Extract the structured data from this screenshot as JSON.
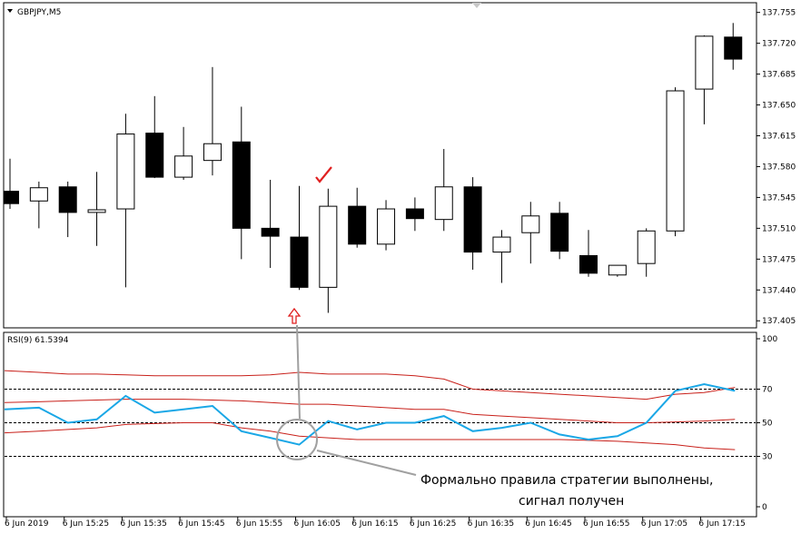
{
  "symbol_label": "GBPJPY,M5",
  "price_axis": {
    "ticks": [
      "137.755",
      "137.720",
      "137.685",
      "137.650",
      "137.615",
      "137.580",
      "137.545",
      "137.510",
      "137.475",
      "137.440",
      "137.405"
    ],
    "ylim": [
      137.397,
      137.766
    ]
  },
  "rsi_panel": {
    "label": "RSI(9) 61.5394",
    "ticks": [
      "100",
      "70",
      "50",
      "30",
      "0"
    ],
    "levels": [
      70,
      50,
      30
    ]
  },
  "time_axis": {
    "labels": [
      "6 Jun 2019",
      "6 Jun 15:25",
      "6 Jun 15:35",
      "6 Jun 15:45",
      "6 Jun 15:55",
      "6 Jun 16:05",
      "6 Jun 16:15",
      "6 Jun 16:25",
      "6 Jun 16:35",
      "6 Jun 16:45",
      "6 Jun 16:55",
      "6 Jun 17:05",
      "6 Jun 17:15"
    ]
  },
  "annotation": {
    "line1": "Формально правила стратегии выполнены,",
    "line2": "сигнал получен"
  },
  "colors": {
    "rsi_line": "#1aa7e6",
    "bands": "#c8201a",
    "signal_marks": "#e02020",
    "bear_candle": "#000000",
    "bull_candle": "#ffffff"
  },
  "chart_data": {
    "type": "candlestick",
    "symbol": "GBPJPY",
    "timeframe": "M5",
    "candles": [
      {
        "o": 137.552,
        "h": 137.589,
        "l": 137.532,
        "c": 137.538
      },
      {
        "o": 137.541,
        "h": 137.563,
        "l": 137.51,
        "c": 137.556
      },
      {
        "o": 137.557,
        "h": 137.563,
        "l": 137.5,
        "c": 137.528
      },
      {
        "o": 137.528,
        "h": 137.574,
        "l": 137.49,
        "c": 137.531
      },
      {
        "o": 137.532,
        "h": 137.64,
        "l": 137.443,
        "c": 137.617
      },
      {
        "o": 137.618,
        "h": 137.66,
        "l": 137.567,
        "c": 137.568
      },
      {
        "o": 137.568,
        "h": 137.625,
        "l": 137.565,
        "c": 137.592
      },
      {
        "o": 137.587,
        "h": 137.693,
        "l": 137.57,
        "c": 137.606
      },
      {
        "o": 137.608,
        "h": 137.648,
        "l": 137.475,
        "c": 137.51
      },
      {
        "o": 137.51,
        "h": 137.565,
        "l": 137.465,
        "c": 137.501
      },
      {
        "o": 137.5,
        "h": 137.558,
        "l": 137.44,
        "c": 137.443
      },
      {
        "o": 137.443,
        "h": 137.555,
        "l": 137.414,
        "c": 137.535
      },
      {
        "o": 137.535,
        "h": 137.556,
        "l": 137.488,
        "c": 137.492
      },
      {
        "o": 137.492,
        "h": 137.542,
        "l": 137.485,
        "c": 137.532
      },
      {
        "o": 137.532,
        "h": 137.545,
        "l": 137.507,
        "c": 137.521
      },
      {
        "o": 137.52,
        "h": 137.6,
        "l": 137.507,
        "c": 137.557
      },
      {
        "o": 137.557,
        "h": 137.568,
        "l": 137.463,
        "c": 137.483
      },
      {
        "o": 137.483,
        "h": 137.508,
        "l": 137.448,
        "c": 137.5
      },
      {
        "o": 137.505,
        "h": 137.54,
        "l": 137.47,
        "c": 137.524
      },
      {
        "o": 137.527,
        "h": 137.54,
        "l": 137.475,
        "c": 137.484
      },
      {
        "o": 137.479,
        "h": 137.508,
        "l": 137.455,
        "c": 137.459
      },
      {
        "o": 137.457,
        "h": 137.465,
        "l": 137.455,
        "c": 137.468
      },
      {
        "o": 137.47,
        "h": 137.51,
        "l": 137.455,
        "c": 137.507
      },
      {
        "o": 137.507,
        "h": 137.67,
        "l": 137.501,
        "c": 137.666
      },
      {
        "o": 137.668,
        "h": 137.729,
        "l": 137.628,
        "c": 137.728
      },
      {
        "o": 137.727,
        "h": 137.743,
        "l": 137.69,
        "c": 137.702
      }
    ],
    "rsi": {
      "period": 9,
      "current": 61.5394,
      "values": [
        58,
        59,
        50,
        52,
        66,
        56,
        58,
        60,
        45,
        41,
        37,
        51,
        46,
        50,
        50,
        54,
        45,
        47,
        50,
        43,
        40,
        42,
        50,
        69,
        73,
        69
      ],
      "upper_band": [
        81,
        80,
        79,
        79,
        78.5,
        78,
        78,
        78,
        78,
        78.5,
        80,
        79,
        79,
        79,
        78,
        76,
        70,
        69,
        68,
        67,
        66,
        65,
        64,
        67,
        68,
        71
      ],
      "middle_band": [
        62,
        62.5,
        63,
        63.5,
        64,
        64,
        64,
        63.5,
        63,
        62,
        61,
        61,
        60,
        59,
        58,
        58,
        55,
        54,
        53,
        52,
        51,
        50,
        50,
        50.5,
        51,
        52
      ],
      "lower_band": [
        44,
        45,
        46,
        47,
        49,
        49.5,
        50,
        50,
        47,
        45,
        42,
        41,
        40,
        40,
        40,
        40,
        40,
        40,
        40,
        40,
        39.5,
        39,
        38,
        37,
        35,
        34
      ],
      "ylim": [
        0,
        100
      ]
    }
  }
}
